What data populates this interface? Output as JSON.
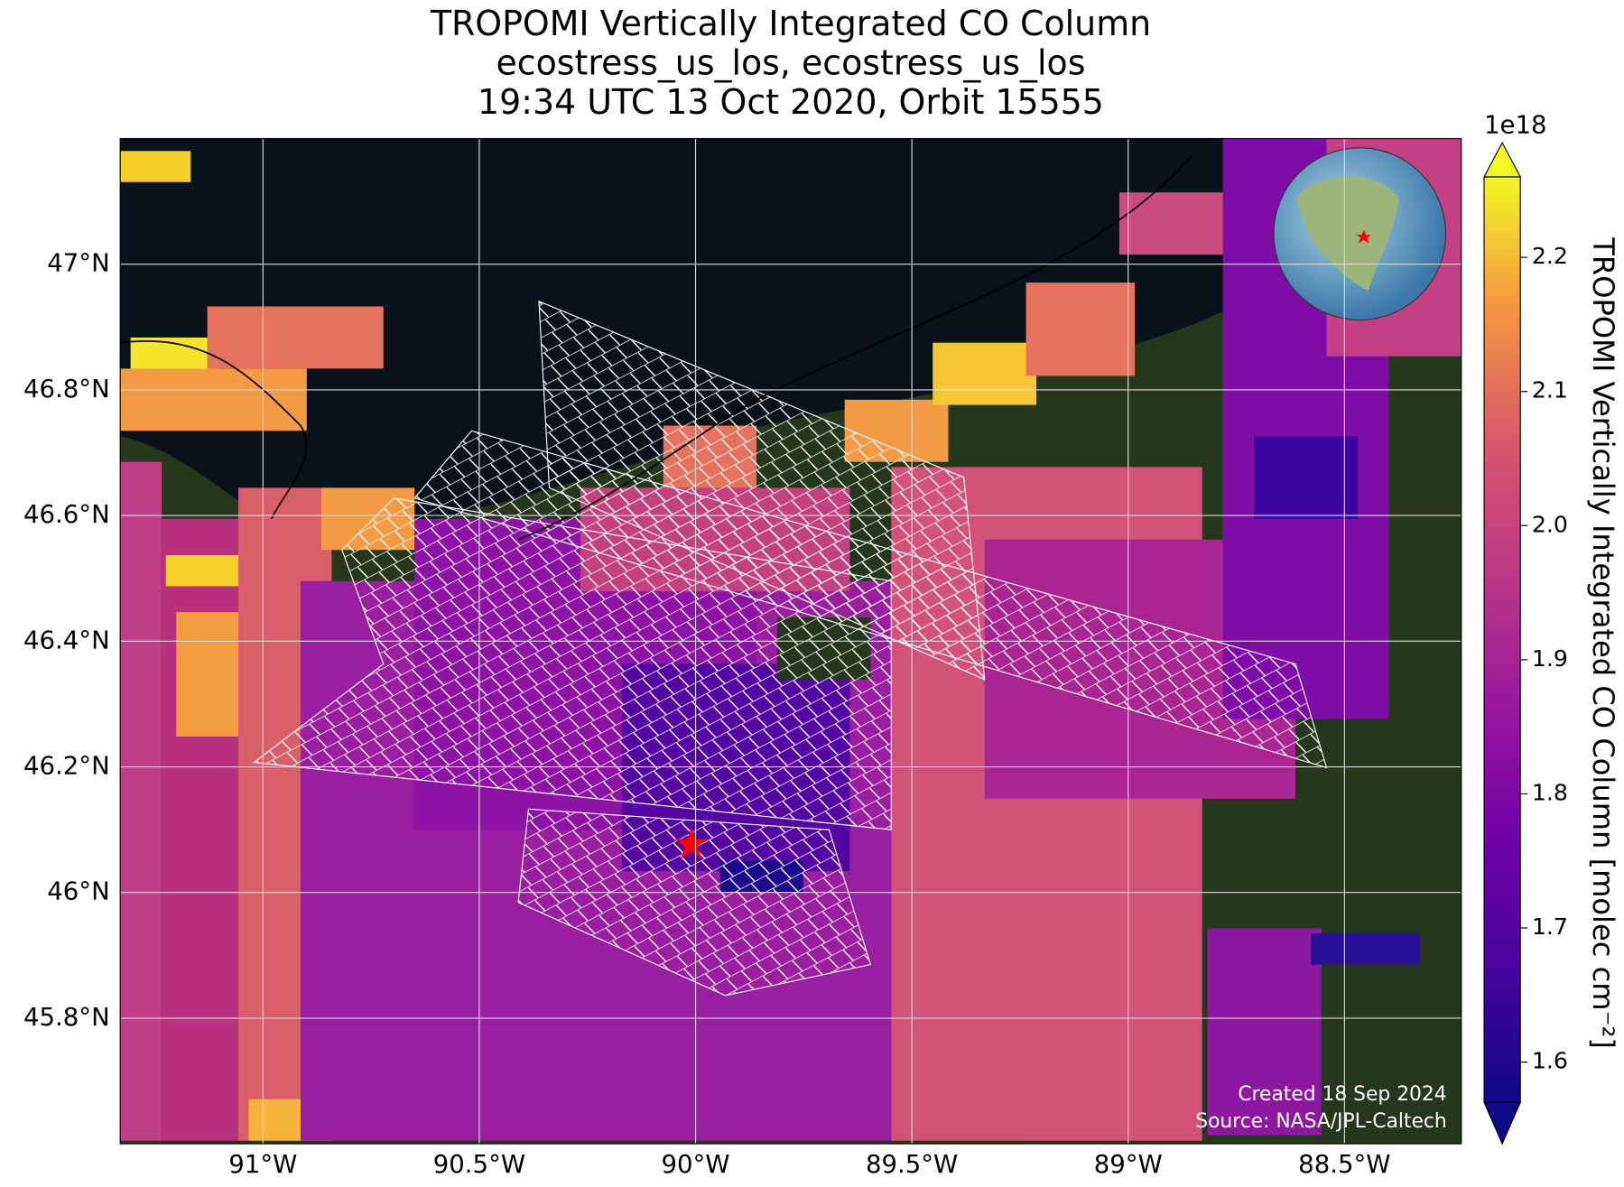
{
  "map": {
    "title": [
      "TROPOMI Vertically Integrated CO Column",
      "ecostress_us_los, ecostress_us_los",
      "19:34 UTC 13 Oct 2020, Orbit 15555"
    ],
    "xlim": [
      -91.33,
      -88.23
    ],
    "ylim": [
      45.6,
      47.2
    ],
    "xticks": [
      {
        "value": -91,
        "label": "91°W"
      },
      {
        "value": -90.5,
        "label": "90.5°W"
      },
      {
        "value": -90,
        "label": "90°W"
      },
      {
        "value": -89.5,
        "label": "89.5°W"
      },
      {
        "value": -89,
        "label": "89°W"
      },
      {
        "value": -88.5,
        "label": "88.5°W"
      }
    ],
    "yticks": [
      {
        "value": 45.8,
        "label": "45.8°N"
      },
      {
        "value": 46,
        "label": "46°N"
      },
      {
        "value": 46.2,
        "label": "46.2°N"
      },
      {
        "value": 46.4,
        "label": "46.4°N"
      },
      {
        "value": 46.6,
        "label": "46.6°N"
      },
      {
        "value": 46.8,
        "label": "46.8°N"
      },
      {
        "value": 47,
        "label": "47°N"
      }
    ],
    "grid": true,
    "credits": [
      "Created 18 Sep 2024",
      "Source: NASA/JPL-Caltech"
    ]
  },
  "colorbar": {
    "label": "TROPOMI Vertically Integrated CO Column [molec cm⁻²]",
    "exponent_label": "1e18",
    "lim": [
      1.57,
      2.26
    ],
    "ticks": [
      1.6,
      1.7,
      1.8,
      1.9,
      {
        "value": 2.0,
        "label": "2.0"
      },
      2.1,
      2.2
    ]
  }
}
